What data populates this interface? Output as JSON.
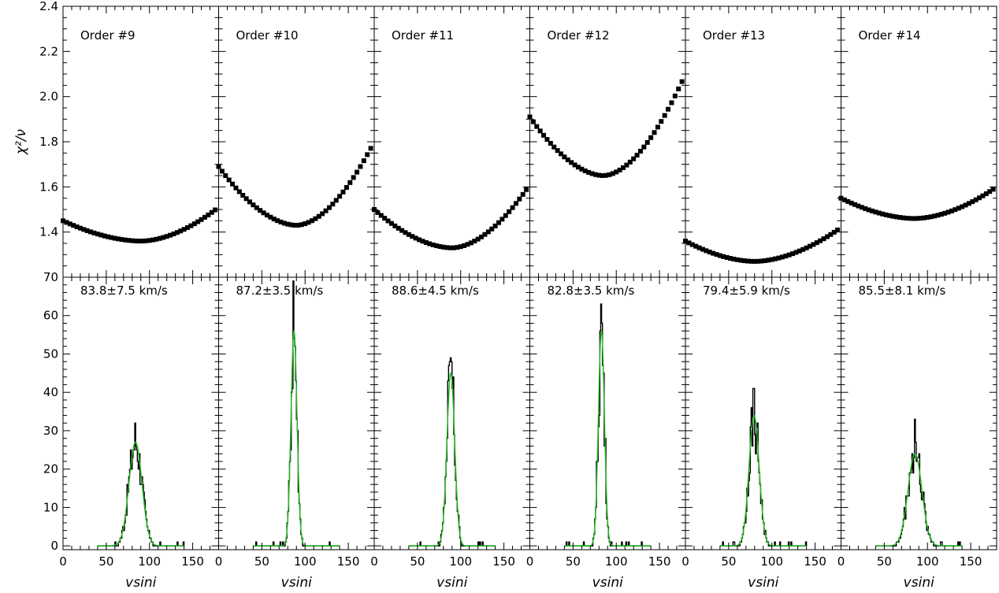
{
  "chart_data": {
    "type": "scatter",
    "layout": "2 rows x 6 columns, shared axes",
    "top_row": {
      "ylabel": "χ²/ν",
      "ylim": [
        1.2,
        2.4
      ],
      "yticks": [
        1.4,
        1.6,
        1.8,
        2.0,
        2.2,
        2.4
      ],
      "ytick_labels": [
        "1.4",
        "1.6",
        "1.8",
        "2.0",
        "2.2",
        "2.4"
      ],
      "marker": "filled square"
    },
    "bottom_row": {
      "type": "histogram with gaussian fit",
      "xlabel": "vsini",
      "xlim": [
        0,
        180
      ],
      "xticks": [
        0,
        50,
        100,
        150
      ],
      "xtick_labels": [
        "0",
        "50",
        "100",
        "150"
      ],
      "ylim": [
        -1,
        70
      ],
      "yticks": [
        0,
        10,
        20,
        30,
        40,
        50,
        60,
        70
      ],
      "ytick_labels": [
        "0",
        "10",
        "20",
        "30",
        "40",
        "50",
        "60",
        "70"
      ],
      "hist_color": "#000000",
      "fit_color": "#22c022"
    },
    "orders": [
      {
        "label": "Order #9",
        "result": "83.8±7.5 km/s",
        "chi_min_x": 90,
        "chi_min": 1.36,
        "chi_left": 1.45,
        "chi_right": 1.51,
        "peak_x": 83.8,
        "sigma": 7.5,
        "peak": 27,
        "hist_max": 32
      },
      {
        "label": "Order #10",
        "result": "87.2±3.5 km/s",
        "chi_min_x": 90,
        "chi_min": 1.43,
        "chi_left": 1.69,
        "chi_right": 1.8,
        "peak_x": 87.2,
        "sigma": 3.5,
        "peak": 56,
        "hist_max": 69
      },
      {
        "label": "Order #11",
        "result": "88.6±4.5 km/s",
        "chi_min_x": 90,
        "chi_min": 1.33,
        "chi_left": 1.5,
        "chi_right": 1.61,
        "peak_x": 88.6,
        "sigma": 4.5,
        "peak": 45,
        "hist_max": 49
      },
      {
        "label": "Order #12",
        "result": "82.8±3.5 km/s",
        "chi_min_x": 85,
        "chi_min": 1.65,
        "chi_left": 1.91,
        "chi_right": 2.1,
        "peak_x": 82.8,
        "sigma": 3.5,
        "peak": 56,
        "hist_max": 63
      },
      {
        "label": "Order #13",
        "result": "79.4±5.9 km/s",
        "chi_min_x": 80,
        "chi_min": 1.27,
        "chi_left": 1.36,
        "chi_right": 1.42,
        "peak_x": 79.4,
        "sigma": 5.9,
        "peak": 34,
        "hist_max": 41
      },
      {
        "label": "Order #14",
        "result": "85.5±8.1 km/s",
        "chi_min_x": 85,
        "chi_min": 1.46,
        "chi_left": 1.55,
        "chi_right": 1.6,
        "peak_x": 85.5,
        "sigma": 8.1,
        "peak": 24,
        "hist_max": 33
      }
    ]
  }
}
